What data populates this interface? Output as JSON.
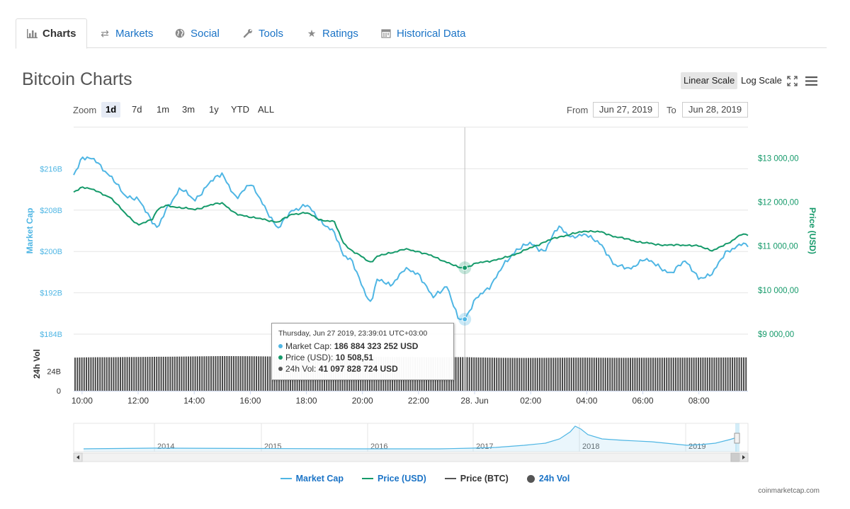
{
  "tabs": [
    {
      "label": "Charts",
      "icon": "bar-chart-icon",
      "active": true
    },
    {
      "label": "Markets",
      "icon": "exchange-arrows-icon"
    },
    {
      "label": "Social",
      "icon": "globe-icon"
    },
    {
      "label": "Tools",
      "icon": "wrench-icon"
    },
    {
      "label": "Ratings",
      "icon": "star-icon"
    },
    {
      "label": "Historical Data",
      "icon": "calendar-icon"
    }
  ],
  "title": "Bitcoin Charts",
  "scale": {
    "linear": "Linear Scale",
    "log": "Log Scale",
    "active": "linear"
  },
  "zoom": {
    "label": "Zoom",
    "options": [
      "1d",
      "7d",
      "1m",
      "3m",
      "1y",
      "YTD",
      "ALL"
    ],
    "active": "1d"
  },
  "range": {
    "from_label": "From",
    "from": "Jun 27, 2019",
    "to_label": "To",
    "to": "Jun 28, 2019"
  },
  "colors": {
    "market_cap": "#4fb6e4",
    "price_usd": "#159a6a",
    "price_btc": "#555555",
    "volume": "#4a4a4a",
    "link": "#1a73c6"
  },
  "tooltip": {
    "header": "Thursday, Jun 27 2019, 23:39:01 UTC+03:00",
    "market_cap_label": "Market Cap:",
    "market_cap_value": "186 884 323 252 USD",
    "price_label": "Price (USD):",
    "price_value": "10 508,51",
    "vol_label": "24h Vol:",
    "vol_value": "41 097 828 724 USD"
  },
  "legend": [
    {
      "label": "Market Cap",
      "kind": "line",
      "color": "#4fb6e4"
    },
    {
      "label": "Price (USD)",
      "kind": "line",
      "color": "#159a6a"
    },
    {
      "label": "Price (BTC)",
      "kind": "line",
      "color": "#555555"
    },
    {
      "label": "24h Vol",
      "kind": "dot",
      "color": "#4a4a4a"
    }
  ],
  "credit": "coinmarketcap.com",
  "chart_data": {
    "type": "line",
    "title": "Bitcoin Charts",
    "x_tick_labels": [
      "10:00",
      "12:00",
      "14:00",
      "16:00",
      "18:00",
      "20:00",
      "22:00",
      "28. Jun",
      "02:00",
      "04:00",
      "06:00",
      "08:00"
    ],
    "x_hours": [
      9.7,
      10,
      10.5,
      11,
      11.5,
      12,
      12.5,
      12.7,
      13,
      13.5,
      14,
      14.5,
      15,
      15.5,
      16,
      16.5,
      17,
      17.5,
      18,
      18.5,
      19,
      19.3,
      19.6,
      20,
      20.3,
      20.5,
      21,
      21.5,
      22,
      22.5,
      23,
      23.4,
      23.65,
      24,
      24.5,
      25,
      25.5,
      26,
      26.5,
      27,
      27.5,
      28,
      28.5,
      29,
      29.5,
      30,
      30.5,
      31,
      31.5,
      32,
      32.5,
      33,
      33.5,
      33.7
    ],
    "yaxis_left": {
      "label": "Market Cap",
      "ticks": [
        "$184B",
        "$192B",
        "$200B",
        "$208B",
        "$216B"
      ],
      "range": [
        184,
        224
      ]
    },
    "yaxis_right": {
      "label": "Price (USD)",
      "ticks": [
        "$9 000,00",
        "$10 000,00",
        "$11 000,00",
        "$12 000,00",
        "$13 000,00"
      ],
      "range": [
        9000,
        13700
      ]
    },
    "yaxis_volume": {
      "label": "24h Vol",
      "ticks": [
        "0",
        "24B"
      ],
      "range": [
        0,
        64
      ]
    },
    "series": [
      {
        "name": "Market Cap",
        "axis": "left",
        "unit": "B USD",
        "values": [
          214.8,
          218.3,
          217.5,
          214.6,
          211.0,
          210.0,
          206.0,
          204.5,
          208.0,
          212.4,
          209.8,
          213.0,
          215.2,
          210.0,
          213.5,
          208.5,
          204.5,
          208.0,
          209.0,
          206.0,
          203.5,
          199.5,
          198.5,
          193.0,
          190.0,
          194.5,
          193.5,
          196.5,
          195.8,
          191.0,
          193.5,
          187.0,
          186.9,
          190.5,
          193.0,
          197.0,
          200.5,
          201.5,
          200.0,
          205.0,
          202.5,
          203.5,
          201.2,
          197.5,
          196.5,
          198.5,
          197.5,
          195.5,
          198.5,
          194.5,
          196.0,
          200.0,
          201.5,
          201.0
        ]
      },
      {
        "name": "Price (USD)",
        "axis": "right",
        "unit": "USD",
        "values": [
          12230,
          12350,
          12260,
          12110,
          11780,
          11470,
          11620,
          11840,
          11920,
          11880,
          11830,
          11920,
          11990,
          11720,
          11670,
          11600,
          11550,
          11730,
          11760,
          11600,
          11550,
          11100,
          10900,
          10750,
          10630,
          10760,
          10850,
          10930,
          10880,
          10770,
          10640,
          10520,
          10508,
          10600,
          10660,
          10720,
          10830,
          10960,
          11100,
          11210,
          11280,
          11350,
          11320,
          11220,
          11150,
          11080,
          11040,
          11020,
          11030,
          11000,
          10900,
          11050,
          11270,
          11250
        ]
      },
      {
        "name": "24h Vol",
        "axis": "volume",
        "unit": "B USD",
        "kind": "column",
        "values": [
          40.5,
          40.8,
          41.0,
          41.0,
          41.2,
          41.3,
          41.5,
          41.6,
          41.6,
          41.8,
          42.0,
          42.2,
          42.4,
          42.3,
          42.2,
          42.0,
          41.8,
          41.7,
          41.7,
          41.6,
          41.5,
          41.5,
          41.4,
          41.3,
          41.3,
          41.3,
          41.2,
          41.2,
          41.1,
          41.1,
          41.1,
          41.1,
          41.1,
          40.8,
          40.5,
          40.3,
          40.2,
          40.2,
          40.3,
          40.4,
          40.5,
          40.5,
          40.4,
          40.3,
          40.3,
          40.4,
          40.4,
          40.5,
          40.5,
          40.6,
          40.6,
          40.7,
          40.8,
          40.8
        ]
      }
    ],
    "navigator": {
      "year_labels": [
        "2014",
        "2015",
        "2016",
        "2017",
        "2018",
        "2019"
      ]
    },
    "highlight": {
      "x_hour": 23.65,
      "market_cap": 186.88,
      "price_usd": 10508.51
    },
    "grid": true,
    "legend_position": "bottom"
  }
}
